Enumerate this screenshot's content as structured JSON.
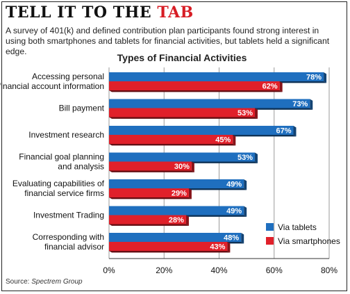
{
  "header": {
    "title_black": "TELL IT TO THE",
    "title_red": "TAB",
    "subtitle": "A survey of 401(k) and defined contribution plan participants found strong interest in using both smartphones and tablets for financial activities, but tablets held a significant edge."
  },
  "source": {
    "label": "Source:",
    "name": "Spectrem Group"
  },
  "chart_data": {
    "type": "bar",
    "orientation": "horizontal",
    "title": "Types of Financial Activities",
    "categories": [
      [
        "Accessing personal",
        "financial account information"
      ],
      [
        "Bill payment"
      ],
      [
        "Investment research"
      ],
      [
        "Financial goal planning",
        "and analysis"
      ],
      [
        "Evaluating capabilities of",
        "financial service firms"
      ],
      [
        "Investment Trading"
      ],
      [
        "Corresponding with",
        "financial advisor"
      ]
    ],
    "series": [
      {
        "name": "Via tablets",
        "color": "#1f6fbf",
        "values": [
          78,
          73,
          67,
          53,
          49,
          49,
          48
        ]
      },
      {
        "name": "Via smartphones",
        "color": "#e0202a",
        "values": [
          62,
          53,
          45,
          30,
          29,
          28,
          43
        ]
      }
    ],
    "xlim": [
      0,
      80
    ],
    "ticks": [
      0,
      20,
      40,
      60,
      80
    ],
    "tick_suffix": "%",
    "grid": true,
    "legend_position": "bottom-right"
  }
}
